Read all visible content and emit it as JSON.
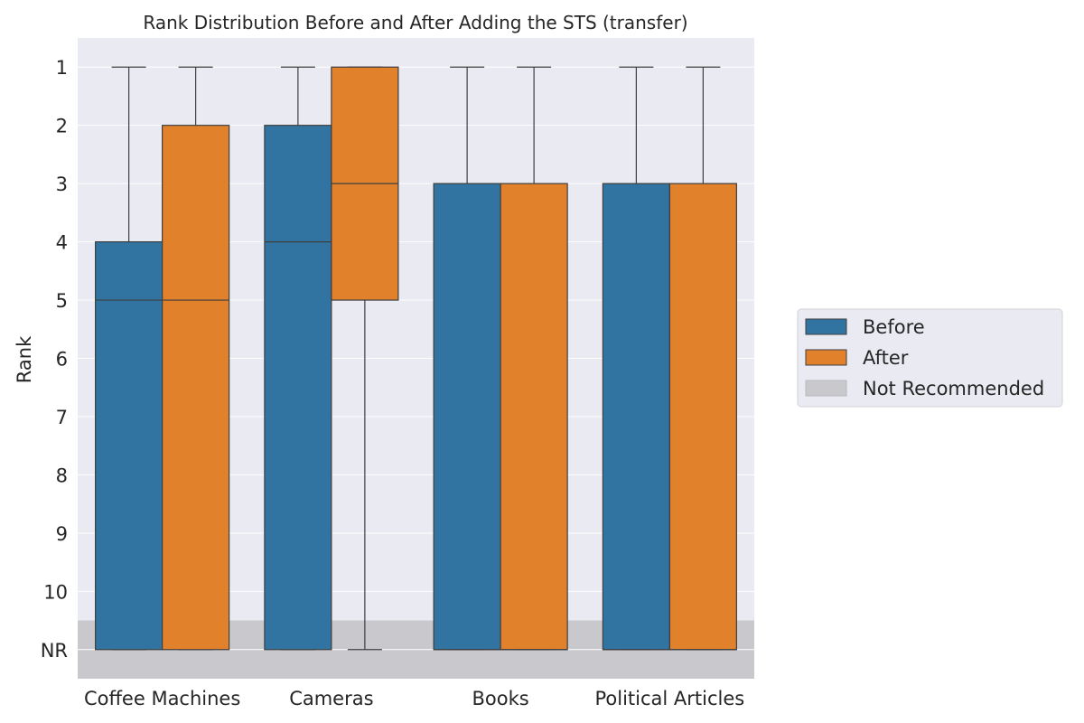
{
  "chart_data": {
    "type": "boxplot",
    "title": "Rank Distribution Before and After Adding the STS (transfer)",
    "ylabel": "Rank",
    "xlabel": "",
    "categories": [
      "Coffee Machines",
      "Cameras",
      "Books",
      "Political Articles"
    ],
    "y_ticks": [
      "1",
      "2",
      "3",
      "4",
      "5",
      "6",
      "7",
      "8",
      "9",
      "10",
      "NR"
    ],
    "y_tick_values": [
      1,
      2,
      3,
      4,
      5,
      6,
      7,
      8,
      9,
      10,
      11
    ],
    "ylim": [
      0.5,
      11.5
    ],
    "y_inverted": true,
    "not_recommended_band": [
      10.5,
      11.5
    ],
    "grid": true,
    "legend_placement": "center-right, outside",
    "legend": [
      "Before",
      "After",
      "Not Recommended"
    ],
    "colors": {
      "Before": "#3274a1",
      "After": "#e1812c",
      "Not Recommended": "#c8c8cd",
      "background": "#eaeaf2"
    },
    "series": [
      {
        "name": "Before",
        "boxes": [
          {
            "category": "Coffee Machines",
            "whisker_low": 1,
            "q1": 4,
            "median": 5,
            "q3": 11,
            "whisker_high": 11
          },
          {
            "category": "Cameras",
            "whisker_low": 1,
            "q1": 2,
            "median": 4,
            "q3": 11,
            "whisker_high": 11
          },
          {
            "category": "Books",
            "whisker_low": 1,
            "q1": 3,
            "median": 11,
            "q3": 11,
            "whisker_high": 11
          },
          {
            "category": "Political Articles",
            "whisker_low": 1,
            "q1": 3,
            "median": 11,
            "q3": 11,
            "whisker_high": 11
          }
        ]
      },
      {
        "name": "After",
        "boxes": [
          {
            "category": "Coffee Machines",
            "whisker_low": 1,
            "q1": 2,
            "median": 5,
            "q3": 11,
            "whisker_high": 11
          },
          {
            "category": "Cameras",
            "whisker_low": 1,
            "q1": 1,
            "median": 3,
            "q3": 5,
            "whisker_high": 11
          },
          {
            "category": "Books",
            "whisker_low": 1,
            "q1": 3,
            "median": 11,
            "q3": 11,
            "whisker_high": 11
          },
          {
            "category": "Political Articles",
            "whisker_low": 1,
            "q1": 3,
            "median": 11,
            "q3": 11,
            "whisker_high": 11
          }
        ]
      }
    ]
  }
}
